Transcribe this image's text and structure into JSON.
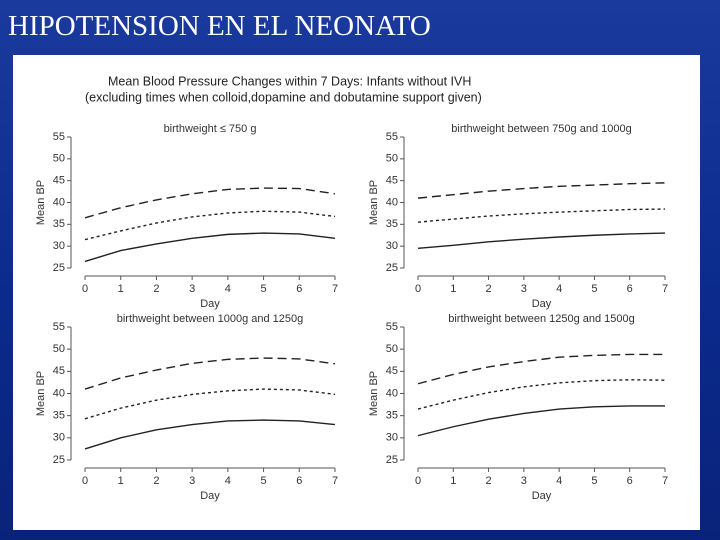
{
  "slide": {
    "title": "HIPOTENSION EN EL NEONATO"
  },
  "figure": {
    "title": [
      "Mean Blood Pressure Changes within 7 Days: Infants without IVH",
      "(excluding times when colloid,dopamine and dobutamine support given)"
    ]
  },
  "chart_data": [
    {
      "type": "line",
      "title": "birthweight ≤ 750 g",
      "x_label": "Day",
      "y_label": "Mean BP",
      "x": [
        0,
        1,
        2,
        3,
        4,
        5,
        6,
        7
      ],
      "xlim": [
        0,
        7
      ],
      "xticks": [
        0,
        1,
        2,
        3,
        4,
        5,
        6,
        7
      ],
      "ylim": [
        25,
        55
      ],
      "yticks": [
        25,
        30,
        35,
        40,
        45,
        50,
        55
      ],
      "series": [
        {
          "color": "#222222",
          "dash": "solid",
          "values": [
            26.5,
            29,
            30.5,
            31.8,
            32.7,
            33,
            32.8,
            31.8
          ]
        },
        {
          "color": "#222222",
          "dash": "dotted",
          "values": [
            31.5,
            33.5,
            35.3,
            36.7,
            37.6,
            38,
            37.8,
            36.8
          ]
        },
        {
          "color": "#222222",
          "dash": "dashed",
          "values": [
            36.5,
            38.8,
            40.6,
            42,
            43,
            43.3,
            43.2,
            42
          ]
        }
      ]
    },
    {
      "type": "line",
      "title": "birthweight between 750g and 1000g",
      "x_label": "Day",
      "y_label": "Mean BP",
      "x": [
        0,
        1,
        2,
        3,
        4,
        5,
        6,
        7
      ],
      "xlim": [
        0,
        7
      ],
      "xticks": [
        0,
        1,
        2,
        3,
        4,
        5,
        6,
        7
      ],
      "ylim": [
        25,
        55
      ],
      "yticks": [
        25,
        30,
        35,
        40,
        45,
        50,
        55
      ],
      "series": [
        {
          "color": "#222222",
          "dash": "solid",
          "values": [
            29.5,
            30.2,
            31,
            31.6,
            32.1,
            32.5,
            32.8,
            33
          ]
        },
        {
          "color": "#222222",
          "dash": "dotted",
          "values": [
            35.5,
            36.2,
            36.9,
            37.4,
            37.8,
            38.1,
            38.4,
            38.5
          ]
        },
        {
          "color": "#222222",
          "dash": "dashed",
          "values": [
            41,
            41.8,
            42.6,
            43.2,
            43.7,
            44,
            44.3,
            44.5
          ]
        }
      ]
    },
    {
      "type": "line",
      "title": "birthweight between 1000g and 1250g",
      "x_label": "Day",
      "y_label": "Mean BP",
      "x": [
        0,
        1,
        2,
        3,
        4,
        5,
        6,
        7
      ],
      "xlim": [
        0,
        7
      ],
      "xticks": [
        0,
        1,
        2,
        3,
        4,
        5,
        6,
        7
      ],
      "ylim": [
        25,
        55
      ],
      "yticks": [
        25,
        30,
        35,
        40,
        45,
        50,
        55
      ],
      "series": [
        {
          "color": "#222222",
          "dash": "solid",
          "values": [
            27.5,
            30,
            31.8,
            33,
            33.8,
            34,
            33.8,
            33
          ]
        },
        {
          "color": "#222222",
          "dash": "dotted",
          "values": [
            34.3,
            36.7,
            38.5,
            39.8,
            40.6,
            41,
            40.8,
            39.8
          ]
        },
        {
          "color": "#222222",
          "dash": "dashed",
          "values": [
            41,
            43.5,
            45.3,
            46.8,
            47.7,
            48,
            47.8,
            46.7
          ]
        }
      ]
    },
    {
      "type": "line",
      "title": "birthweight between 1250g and 1500g",
      "x_label": "Day",
      "y_label": "Mean BP",
      "x": [
        0,
        1,
        2,
        3,
        4,
        5,
        6,
        7
      ],
      "xlim": [
        0,
        7
      ],
      "xticks": [
        0,
        1,
        2,
        3,
        4,
        5,
        6,
        7
      ],
      "ylim": [
        25,
        55
      ],
      "yticks": [
        25,
        30,
        35,
        40,
        45,
        50,
        55
      ],
      "series": [
        {
          "color": "#222222",
          "dash": "solid",
          "values": [
            30.5,
            32.5,
            34.2,
            35.5,
            36.5,
            37,
            37.2,
            37.2
          ]
        },
        {
          "color": "#222222",
          "dash": "dotted",
          "values": [
            36.5,
            38.5,
            40.2,
            41.5,
            42.4,
            42.9,
            43.1,
            43
          ]
        },
        {
          "color": "#222222",
          "dash": "dashed",
          "values": [
            42.2,
            44.3,
            46,
            47.2,
            48.2,
            48.6,
            48.8,
            48.8
          ]
        }
      ]
    }
  ]
}
